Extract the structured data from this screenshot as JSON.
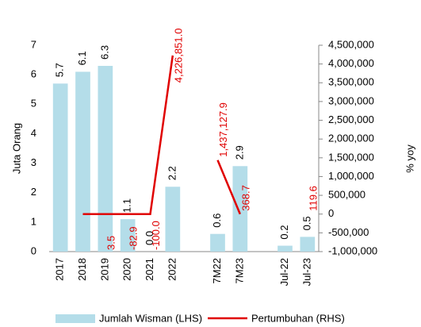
{
  "chart_data": {
    "type": "bar-line",
    "categories": [
      "2017",
      "2018",
      "2019",
      "2020",
      "2021",
      "2022",
      null,
      "7M22",
      "7M23",
      null,
      "Jul-22",
      "Jul-23"
    ],
    "ylabel": "Juta Orang",
    "y2label": "% yoy",
    "ylim": [
      0,
      7
    ],
    "yticks": [
      0,
      1,
      2,
      3,
      4,
      5,
      6,
      7
    ],
    "y2lim": [
      -1000000,
      4500000
    ],
    "y2ticks": [
      {
        "value": -1000000,
        "label": "-1,000,000"
      },
      {
        "value": -500000,
        "label": "-500,000"
      },
      0,
      {
        "value": 500000,
        "label": "500,000"
      },
      {
        "value": 1000000,
        "label": "1,000,000"
      },
      {
        "value": 1500000,
        "label": "1,500,000"
      },
      {
        "value": 2000000,
        "label": "2,000,000"
      },
      {
        "value": 2500000,
        "label": "2,500,000"
      },
      {
        "value": 3000000,
        "label": "3,000,000"
      },
      {
        "value": 3500000,
        "label": "3,500,000"
      },
      {
        "value": 4000000,
        "label": "4,000,000"
      },
      {
        "value": 4500000,
        "label": "4,500,000"
      }
    ],
    "series": [
      {
        "name": "Jumlah Wisman (LHS)",
        "type": "bar",
        "color": "#b4dde9",
        "values": [
          5.7,
          6.1,
          6.3,
          1.1,
          0,
          2.2,
          null,
          0.6,
          2.9,
          null,
          0.2,
          0.5
        ],
        "value_labels": [
          "5.7",
          "6.1",
          "6.3",
          "1.1",
          "0.0",
          "2.2",
          null,
          "0.6",
          "2.9",
          null,
          "0.2",
          "0.5"
        ]
      },
      {
        "name": "Pertumbuhan (RHS)",
        "type": "line",
        "axis": "y2",
        "color": "#e00000",
        "values": [
          null,
          0,
          3.5,
          -82.9,
          -100.0,
          4226851.0,
          null,
          1437127.9,
          368.7,
          null,
          null,
          119.6
        ],
        "value_labels": [
          null,
          null,
          "3.5",
          "-82.9",
          "-100.0",
          "4,226,851.0",
          null,
          "1,437,127.9",
          "368.7",
          null,
          null,
          "119.6"
        ]
      }
    ]
  }
}
